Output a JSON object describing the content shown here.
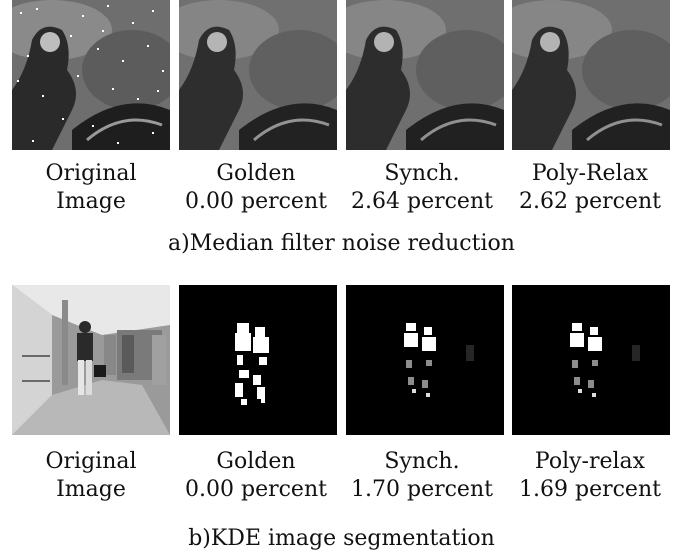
{
  "section_a": {
    "caption": "a)Median filter noise reduction",
    "panels": [
      {
        "line1": "Original",
        "line2": "Image"
      },
      {
        "line1": "Golden",
        "line2": "0.00 percent"
      },
      {
        "line1": "Synch.",
        "line2": "2.64 percent"
      },
      {
        "line1": "Poly-Relax",
        "line2": "2.62 percent"
      }
    ]
  },
  "section_b": {
    "caption": "b)KDE image segmentation",
    "panels": [
      {
        "line1": "Original",
        "line2": "Image"
      },
      {
        "line1": "Golden",
        "line2": "0.00 percent"
      },
      {
        "line1": "Synch.",
        "line2": "1.70 percent"
      },
      {
        "line1": "Poly-relax",
        "line2": "1.69 percent"
      }
    ]
  }
}
